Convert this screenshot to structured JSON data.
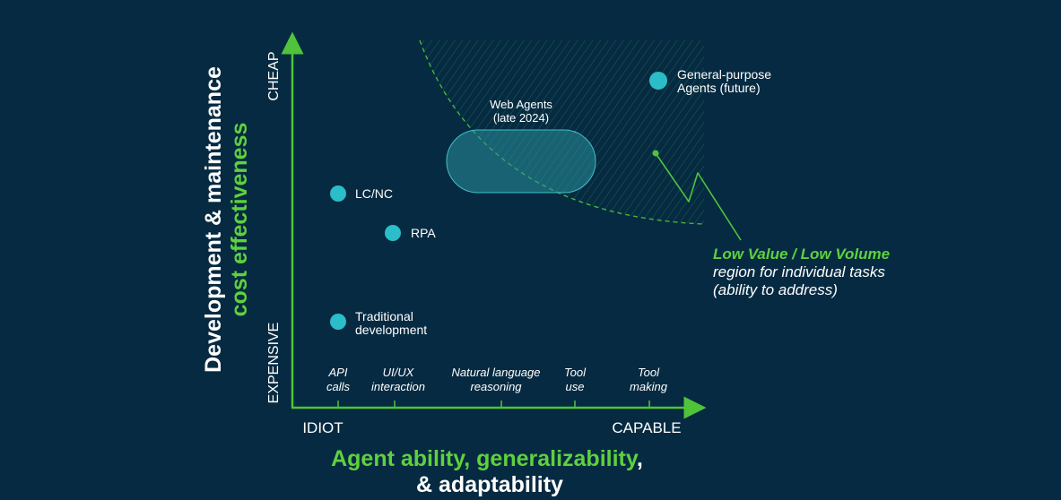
{
  "colors": {
    "background": "#062a41",
    "axis": "#4fc43a",
    "dot": "#2bbdc8",
    "text": "#ffffff",
    "accent_green": "#5ed13f"
  },
  "y_axis": {
    "title_line1": "Development & maintenance",
    "title_line2": "cost effectiveness",
    "top_label": "CHEAP",
    "bottom_label": "EXPENSIVE"
  },
  "x_axis": {
    "left_label": "IDIOT",
    "right_label": "CAPABLE",
    "title_green": "Agent ability, generalizability",
    "title_comma": ",",
    "title_line2": "& adaptability",
    "ticks": [
      {
        "line1": "API",
        "line2": "calls"
      },
      {
        "line1": "UI/UX",
        "line2": "interaction"
      },
      {
        "line1": "Natural language",
        "line2": "reasoning"
      },
      {
        "line1": "Tool",
        "line2": "use"
      },
      {
        "line1": "Tool",
        "line2": "making"
      }
    ]
  },
  "points": [
    {
      "line1": "LC/NC",
      "line2": ""
    },
    {
      "line1": "RPA",
      "line2": ""
    },
    {
      "line1": "Traditional",
      "line2": "development"
    },
    {
      "line1": "General-purpose",
      "line2": "Agents (future)"
    }
  ],
  "web_agents": {
    "line1": "Web Agents",
    "line2": "(late 2024)"
  },
  "region_note": {
    "title": "Low Value / Low Volume",
    "line2": "region for individual tasks",
    "line3": "(ability to address)"
  }
}
